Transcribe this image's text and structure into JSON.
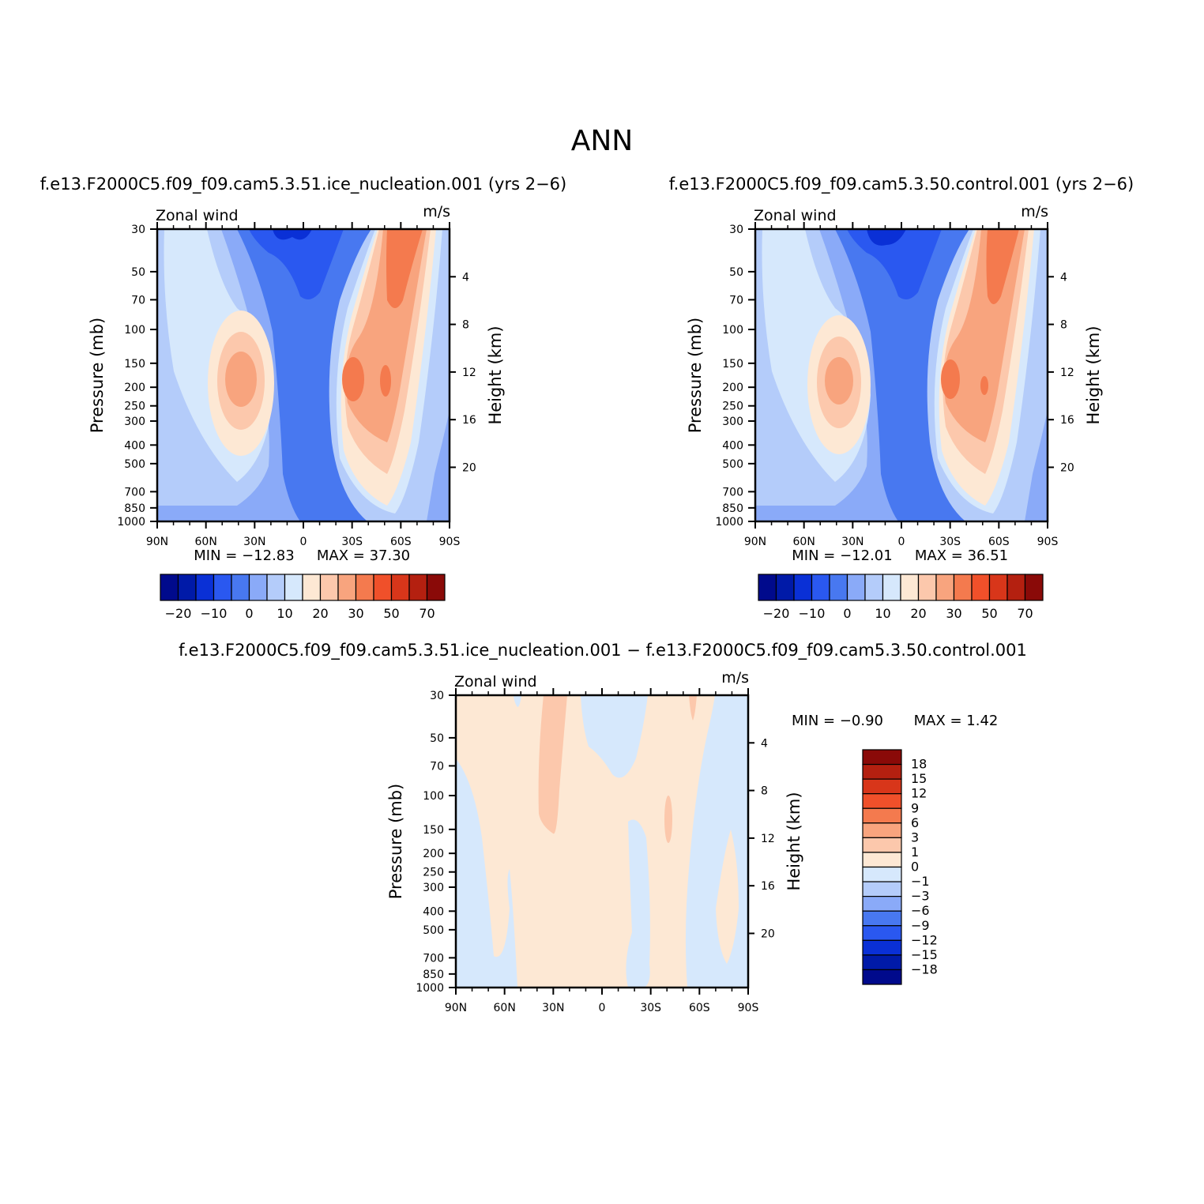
{
  "figure_title": "ANN",
  "chart_data": [
    {
      "type": "heatmap",
      "case_title": "f.e13.F2000C5.f09_f09.cam5.3.51.ice_nucleation.001  (yrs  2−6)",
      "title": "Zonal wind",
      "units": "m/s",
      "xlabel": "",
      "ylabel": "Pressure (mb)",
      "ylabel_right": "Height (km)",
      "x_ticks": [
        "90N",
        "60N",
        "30N",
        "0",
        "30S",
        "60S",
        "90S"
      ],
      "y_ticks": [
        30,
        50,
        70,
        100,
        150,
        200,
        250,
        300,
        400,
        500,
        700,
        850,
        1000
      ],
      "y_right_ticks": [
        4,
        8,
        12,
        16,
        20
      ],
      "ylim": [
        1000,
        30
      ],
      "y_scale": "log",
      "min_label": "MIN  =  −12.83",
      "max_label": "MAX  =   37.30",
      "min": -12.83,
      "max": 37.3,
      "colorbar_orientation": "horizontal",
      "colorbar_tick_labels": [
        "−20",
        "−10",
        "0",
        "10",
        "20",
        "30",
        "50",
        "70"
      ]
    },
    {
      "type": "heatmap",
      "case_title": "f.e13.F2000C5.f09_f09.cam5.3.50.control.001  (yrs  2−6)",
      "title": "Zonal wind",
      "units": "m/s",
      "xlabel": "",
      "ylabel": "Pressure (mb)",
      "ylabel_right": "Height (km)",
      "x_ticks": [
        "90N",
        "60N",
        "30N",
        "0",
        "30S",
        "60S",
        "90S"
      ],
      "y_ticks": [
        30,
        50,
        70,
        100,
        150,
        200,
        250,
        300,
        400,
        500,
        700,
        850,
        1000
      ],
      "y_right_ticks": [
        4,
        8,
        12,
        16,
        20
      ],
      "ylim": [
        1000,
        30
      ],
      "y_scale": "log",
      "min_label": "MIN  =  −12.01",
      "max_label": "MAX  =   36.51",
      "min": -12.01,
      "max": 36.51,
      "colorbar_orientation": "horizontal",
      "colorbar_tick_labels": [
        "−20",
        "−10",
        "0",
        "10",
        "20",
        "30",
        "50",
        "70"
      ]
    },
    {
      "type": "heatmap",
      "case_title": "f.e13.F2000C5.f09_f09.cam5.3.51.ice_nucleation.001  −  f.e13.F2000C5.f09_f09.cam5.3.50.control.001",
      "title": "Zonal wind",
      "units": "m/s",
      "xlabel": "",
      "ylabel": "Pressure (mb)",
      "ylabel_right": "Height (km)",
      "x_ticks": [
        "90N",
        "60N",
        "30N",
        "0",
        "30S",
        "60S",
        "90S"
      ],
      "y_ticks": [
        30,
        50,
        70,
        100,
        150,
        200,
        250,
        300,
        400,
        500,
        700,
        850,
        1000
      ],
      "y_right_ticks": [
        4,
        8,
        12,
        16,
        20
      ],
      "ylim": [
        1000,
        30
      ],
      "y_scale": "log",
      "min_label": "MIN  =     −0.90",
      "max_label": "MAX  =      1.42",
      "min": -0.9,
      "max": 1.42,
      "colorbar_orientation": "vertical",
      "colorbar_tick_labels": [
        "18",
        "15",
        "12",
        "9",
        "6",
        "3",
        "1",
        "0",
        "−1",
        "−3",
        "−6",
        "−9",
        "−12",
        "−15",
        "−18"
      ]
    }
  ],
  "colors": {
    "scale": [
      "#000a8c",
      "#001aa8",
      "#0a30d6",
      "#2a58f0",
      "#4878f0",
      "#8aaaf8",
      "#b4ccfa",
      "#d6e8fc",
      "#fde8d4",
      "#fcc8ac",
      "#f8a47e",
      "#f47a4e",
      "#f0502a",
      "#d8361a",
      "#b42010",
      "#8a0a08"
    ]
  }
}
